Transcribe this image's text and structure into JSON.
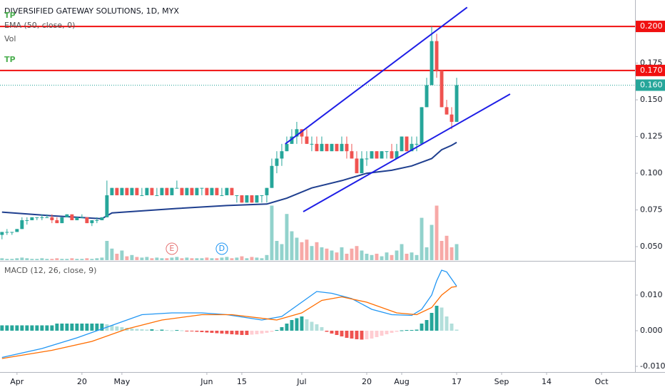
{
  "chart_data": {
    "type": "candlestick",
    "title": "DIVERSIFIED GATEWAY SOLUTIONS, 1D, MYX",
    "indicator_labels": [
      "EMA (50, close, 0)",
      "Vol"
    ],
    "tp_labels": [
      "TP",
      "TP"
    ],
    "macd_title": "MACD (12, 26, close, 9)",
    "up_color": "#26a69a",
    "down_color": "#ef5350",
    "xlim": [
      -0.4,
      126.7
    ],
    "xticks": [
      {
        "value": 3,
        "label": "Apr"
      },
      {
        "value": 16,
        "label": "20"
      },
      {
        "value": 24,
        "label": "May"
      },
      {
        "value": 41,
        "label": "Jun"
      },
      {
        "value": 48,
        "label": "15"
      },
      {
        "value": 60,
        "label": "Jul"
      },
      {
        "value": 73,
        "label": "20"
      },
      {
        "value": 80,
        "label": "Aug"
      },
      {
        "value": 91,
        "label": "17"
      },
      {
        "value": 100,
        "label": "Sep"
      },
      {
        "value": 109,
        "label": "14"
      },
      {
        "value": 120,
        "label": "Oct"
      }
    ],
    "ylim": [
      0.0408,
      0.218
    ],
    "yticks": [
      {
        "value": 0.05,
        "label": "0.050"
      },
      {
        "value": 0.075,
        "label": "0.075"
      },
      {
        "value": 0.1,
        "label": "0.100"
      },
      {
        "value": 0.125,
        "label": "0.125"
      },
      {
        "value": 0.15,
        "label": "0.150"
      },
      {
        "value": 0.175,
        "label": "0.175"
      }
    ],
    "grid": false,
    "ohlc": [
      [
        0.058,
        0.06,
        0.055,
        0.06
      ],
      [
        0.06,
        0.062,
        0.058,
        0.06
      ],
      [
        0.06,
        0.06,
        0.058,
        0.06
      ],
      [
        0.06,
        0.062,
        0.06,
        0.062
      ],
      [
        0.062,
        0.07,
        0.062,
        0.068
      ],
      [
        0.068,
        0.07,
        0.065,
        0.068
      ],
      [
        0.068,
        0.07,
        0.068,
        0.07
      ],
      [
        0.07,
        0.07,
        0.068,
        0.07
      ],
      [
        0.07,
        0.072,
        0.068,
        0.07
      ],
      [
        0.07,
        0.072,
        0.07,
        0.07
      ],
      [
        0.07,
        0.072,
        0.066,
        0.068
      ],
      [
        0.068,
        0.07,
        0.066,
        0.066
      ],
      [
        0.066,
        0.07,
        0.066,
        0.07
      ],
      [
        0.07,
        0.072,
        0.07,
        0.072
      ],
      [
        0.072,
        0.072,
        0.068,
        0.068
      ],
      [
        0.068,
        0.07,
        0.068,
        0.07
      ],
      [
        0.07,
        0.072,
        0.07,
        0.07
      ],
      [
        0.07,
        0.07,
        0.066,
        0.066
      ],
      [
        0.066,
        0.068,
        0.064,
        0.068
      ],
      [
        0.068,
        0.07,
        0.066,
        0.068
      ],
      [
        0.068,
        0.07,
        0.068,
        0.07
      ],
      [
        0.07,
        0.095,
        0.07,
        0.085
      ],
      [
        0.085,
        0.09,
        0.085,
        0.09
      ],
      [
        0.09,
        0.09,
        0.085,
        0.085
      ],
      [
        0.085,
        0.09,
        0.085,
        0.09
      ],
      [
        0.09,
        0.09,
        0.085,
        0.085
      ],
      [
        0.085,
        0.09,
        0.085,
        0.09
      ],
      [
        0.09,
        0.09,
        0.085,
        0.085
      ],
      [
        0.085,
        0.09,
        0.085,
        0.085
      ],
      [
        0.085,
        0.09,
        0.085,
        0.09
      ],
      [
        0.09,
        0.09,
        0.085,
        0.085
      ],
      [
        0.085,
        0.09,
        0.085,
        0.085
      ],
      [
        0.085,
        0.09,
        0.085,
        0.09
      ],
      [
        0.09,
        0.09,
        0.085,
        0.085
      ],
      [
        0.085,
        0.09,
        0.085,
        0.09
      ],
      [
        0.09,
        0.095,
        0.09,
        0.09
      ],
      [
        0.09,
        0.09,
        0.085,
        0.085
      ],
      [
        0.085,
        0.09,
        0.085,
        0.09
      ],
      [
        0.09,
        0.09,
        0.085,
        0.085
      ],
      [
        0.085,
        0.09,
        0.085,
        0.09
      ],
      [
        0.09,
        0.09,
        0.085,
        0.09
      ],
      [
        0.09,
        0.09,
        0.085,
        0.085
      ],
      [
        0.085,
        0.09,
        0.085,
        0.09
      ],
      [
        0.09,
        0.09,
        0.085,
        0.085
      ],
      [
        0.085,
        0.09,
        0.085,
        0.085
      ],
      [
        0.085,
        0.09,
        0.085,
        0.09
      ],
      [
        0.09,
        0.09,
        0.085,
        0.085
      ],
      [
        0.085,
        0.085,
        0.08,
        0.085
      ],
      [
        0.085,
        0.085,
        0.08,
        0.08
      ],
      [
        0.08,
        0.085,
        0.08,
        0.085
      ],
      [
        0.085,
        0.085,
        0.08,
        0.08
      ],
      [
        0.08,
        0.085,
        0.08,
        0.085
      ],
      [
        0.085,
        0.085,
        0.08,
        0.085
      ],
      [
        0.085,
        0.09,
        0.08,
        0.09
      ],
      [
        0.09,
        0.11,
        0.09,
        0.105
      ],
      [
        0.105,
        0.115,
        0.1,
        0.11
      ],
      [
        0.11,
        0.12,
        0.105,
        0.115
      ],
      [
        0.115,
        0.125,
        0.115,
        0.12
      ],
      [
        0.12,
        0.13,
        0.12,
        0.125
      ],
      [
        0.125,
        0.135,
        0.12,
        0.13
      ],
      [
        0.13,
        0.13,
        0.12,
        0.125
      ],
      [
        0.125,
        0.13,
        0.12,
        0.12
      ],
      [
        0.12,
        0.125,
        0.115,
        0.12
      ],
      [
        0.12,
        0.125,
        0.115,
        0.115
      ],
      [
        0.115,
        0.125,
        0.115,
        0.12
      ],
      [
        0.12,
        0.12,
        0.115,
        0.115
      ],
      [
        0.115,
        0.12,
        0.115,
        0.12
      ],
      [
        0.12,
        0.12,
        0.115,
        0.115
      ],
      [
        0.115,
        0.125,
        0.115,
        0.12
      ],
      [
        0.12,
        0.125,
        0.11,
        0.115
      ],
      [
        0.115,
        0.12,
        0.11,
        0.11
      ],
      [
        0.11,
        0.115,
        0.1,
        0.1
      ],
      [
        0.1,
        0.115,
        0.1,
        0.11
      ],
      [
        0.11,
        0.115,
        0.105,
        0.11
      ],
      [
        0.11,
        0.115,
        0.11,
        0.115
      ],
      [
        0.115,
        0.115,
        0.11,
        0.11
      ],
      [
        0.11,
        0.115,
        0.11,
        0.115
      ],
      [
        0.115,
        0.115,
        0.11,
        0.115
      ],
      [
        0.115,
        0.12,
        0.11,
        0.11
      ],
      [
        0.11,
        0.12,
        0.11,
        0.115
      ],
      [
        0.115,
        0.125,
        0.115,
        0.125
      ],
      [
        0.125,
        0.125,
        0.115,
        0.115
      ],
      [
        0.115,
        0.125,
        0.115,
        0.12
      ],
      [
        0.12,
        0.125,
        0.115,
        0.12
      ],
      [
        0.12,
        0.145,
        0.12,
        0.145
      ],
      [
        0.145,
        0.165,
        0.145,
        0.16
      ],
      [
        0.16,
        0.2,
        0.16,
        0.19
      ],
      [
        0.19,
        0.195,
        0.165,
        0.17
      ],
      [
        0.17,
        0.17,
        0.145,
        0.145
      ],
      [
        0.145,
        0.15,
        0.14,
        0.14
      ],
      [
        0.14,
        0.145,
        0.13,
        0.135
      ],
      [
        0.135,
        0.165,
        0.135,
        0.16
      ]
    ],
    "vlim": [
      0,
      100
    ],
    "volume": [
      3,
      2,
      2,
      3,
      4,
      3,
      2,
      2,
      3,
      2,
      2,
      3,
      2,
      2,
      3,
      2,
      2,
      3,
      2,
      3,
      4,
      30,
      18,
      10,
      15,
      6,
      8,
      5,
      4,
      5,
      3,
      4,
      3,
      3,
      4,
      5,
      3,
      4,
      3,
      3,
      3,
      4,
      3,
      3,
      4,
      5,
      3,
      4,
      6,
      3,
      5,
      4,
      3,
      8,
      85,
      30,
      25,
      72,
      45,
      35,
      28,
      32,
      22,
      28,
      20,
      18,
      15,
      12,
      20,
      10,
      18,
      22,
      15,
      10,
      8,
      10,
      6,
      12,
      8,
      15,
      25,
      10,
      12,
      8,
      66,
      20,
      55,
      85,
      30,
      38,
      20,
      25
    ],
    "ema": {
      "color": "#1f3f8f",
      "x": [
        0,
        10,
        20,
        22,
        35,
        45,
        53,
        57,
        62,
        68,
        73,
        78,
        82,
        86,
        88,
        90,
        91
      ],
      "values": [
        0.0735,
        0.071,
        0.069,
        0.073,
        0.076,
        0.078,
        0.079,
        0.083,
        0.09,
        0.095,
        0.1,
        0.102,
        0.105,
        0.11,
        0.116,
        0.119,
        0.121
      ]
    },
    "trendlines": [
      {
        "color": "#1e1ee6",
        "x": [
          56.7,
          93.1
        ],
        "values": [
          0.12,
          0.213
        ]
      },
      {
        "color": "#1e1ee6",
        "x": [
          60.3,
          101.7
        ],
        "values": [
          0.0738,
          0.1539
        ]
      }
    ],
    "levels": [
      {
        "value": 0.2,
        "label": "0.200",
        "color": "#f01010"
      },
      {
        "value": 0.17,
        "label": "0.170",
        "color": "#f01010"
      }
    ],
    "last_price": {
      "value": 0.16,
      "label": "0.160",
      "color": "#26a69a"
    },
    "events": [
      {
        "x": 34,
        "label": "E",
        "color": "#e57373"
      },
      {
        "x": 44,
        "label": "D",
        "color": "#2196f3"
      }
    ],
    "macd_ylim": [
      -0.0116,
      0.0192
    ],
    "macd_yticks": [
      {
        "value": -0.01,
        "label": "-0.010"
      },
      {
        "value": 0,
        "label": "0.000"
      },
      {
        "value": 0.01,
        "label": "0.010"
      }
    ],
    "histogram": [
      0.0015,
      0.0015,
      0.0015,
      0.0015,
      0.0015,
      0.0015,
      0.0015,
      0.0015,
      0.0015,
      0.0015,
      0.0015,
      0.002,
      0.002,
      0.002,
      0.002,
      0.002,
      0.002,
      0.002,
      0.002,
      0.002,
      0.002,
      0.0018,
      0.0015,
      0.0012,
      0.001,
      0.0008,
      0.0006,
      0.0005,
      0.0004,
      0.0003,
      0.0004,
      0.0002,
      0.0003,
      0.0002,
      0.0001,
      0.0002,
      0.0001,
      -0.0001,
      -0.0002,
      -0.0003,
      -0.0004,
      -0.0005,
      -0.0006,
      -0.0007,
      -0.0008,
      -0.0009,
      -0.001,
      -0.0011,
      -0.0012,
      -0.0012,
      -0.0011,
      -0.001,
      -0.0008,
      -0.0006,
      -0.0003,
      0.0002,
      0.001,
      0.002,
      0.003,
      0.0035,
      0.004,
      0.0032,
      0.0025,
      0.0018,
      0.001,
      -0.0003,
      -0.0008,
      -0.0012,
      -0.0016,
      -0.002,
      -0.0022,
      -0.0024,
      -0.0025,
      -0.0024,
      -0.0022,
      -0.0018,
      -0.0014,
      -0.001,
      -0.0006,
      -0.0003,
      0.0001,
      0.0002,
      0.0002,
      0.0003,
      0.002,
      0.003,
      0.005,
      0.007,
      0.0065,
      0.004,
      0.002,
      0.0003
    ],
    "macd_lines": [
      {
        "color": "#2196f3",
        "x": [
          0,
          8,
          15,
          22,
          28,
          34,
          40,
          45,
          52,
          56,
          60,
          63,
          66,
          70,
          74,
          78,
          82,
          84,
          86,
          87,
          88,
          89,
          90,
          91
        ],
        "values": [
          -0.0075,
          -0.005,
          -0.002,
          0.0015,
          0.0045,
          0.005,
          0.005,
          0.0045,
          0.003,
          0.004,
          0.008,
          0.011,
          0.0105,
          0.009,
          0.006,
          0.0045,
          0.0043,
          0.006,
          0.01,
          0.014,
          0.017,
          0.0165,
          0.0145,
          0.0125
        ]
      },
      {
        "color": "#ff6d00",
        "x": [
          0,
          10,
          18,
          25,
          32,
          40,
          46,
          55,
          60,
          64,
          68,
          73,
          79,
          83,
          86,
          88,
          90,
          91
        ],
        "values": [
          -0.0078,
          -0.0055,
          -0.003,
          0.0005,
          0.003,
          0.0045,
          0.0045,
          0.003,
          0.005,
          0.0085,
          0.0095,
          0.008,
          0.005,
          0.0045,
          0.0065,
          0.01,
          0.0122,
          0.0124
        ]
      }
    ]
  }
}
